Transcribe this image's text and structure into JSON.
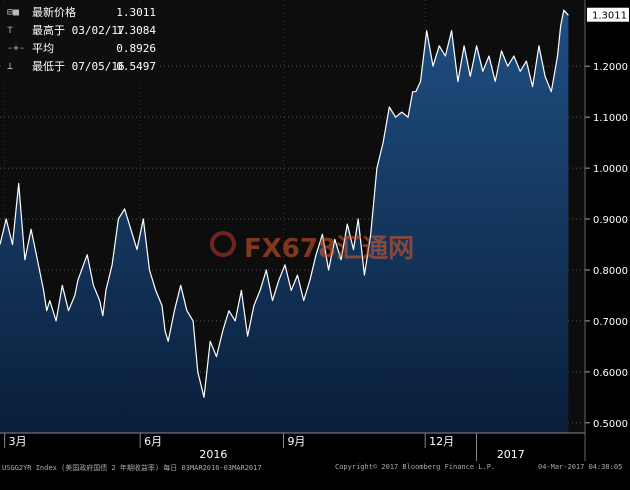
{
  "chart_data": {
    "type": "area",
    "title": "",
    "xlabel": "",
    "ylabel": "",
    "ylim": [
      0.48,
      1.33
    ],
    "y_ticks": [
      "0.5000",
      "0.6000",
      "0.7000",
      "0.8000",
      "0.9000",
      "1.0000",
      "1.1000",
      "1.2000"
    ],
    "x_month_labels": [
      {
        "label": "3月",
        "day": 3
      },
      {
        "label": "6月",
        "day": 90
      },
      {
        "label": "9月",
        "day": 182
      },
      {
        "label": "12月",
        "day": 273
      }
    ],
    "x_year_labels": [
      {
        "label": "2016",
        "day": 137
      },
      {
        "label": "2017",
        "day": 328
      }
    ],
    "x_range_days": [
      0,
      366
    ],
    "grid": "horizontal dotted",
    "colors": {
      "line": "#ffffff",
      "fill_top": "#1f4f82",
      "fill_bottom": "#0a1e3a",
      "plot_bg": "#0d0d0d",
      "label_box": "#ffffff"
    },
    "series": [
      {
        "name": "",
        "x": [
          0,
          4,
          8,
          12,
          16,
          20,
          24,
          28,
          30,
          32,
          36,
          40,
          44,
          48,
          50,
          56,
          60,
          64,
          66,
          68,
          72,
          76,
          80,
          84,
          88,
          92,
          96,
          100,
          104,
          106,
          108,
          112,
          116,
          120,
          124,
          127,
          131,
          135,
          139,
          143,
          147,
          151,
          155,
          159,
          163,
          167,
          171,
          175,
          179,
          183,
          187,
          191,
          195,
          199,
          203,
          207,
          211,
          215,
          219,
          223,
          227,
          230,
          234,
          238,
          242,
          246,
          250,
          254,
          258,
          262,
          265,
          267,
          270,
          274,
          278,
          282,
          286,
          290,
          294,
          298,
          302,
          306,
          310,
          314,
          318,
          322,
          326,
          330,
          334,
          338,
          342,
          346,
          350,
          354,
          358,
          360,
          362,
          365
        ],
        "y": [
          0.85,
          0.9,
          0.85,
          0.97,
          0.82,
          0.88,
          0.82,
          0.76,
          0.72,
          0.74,
          0.7,
          0.77,
          0.72,
          0.75,
          0.78,
          0.83,
          0.77,
          0.74,
          0.71,
          0.76,
          0.81,
          0.9,
          0.92,
          0.88,
          0.84,
          0.9,
          0.8,
          0.76,
          0.73,
          0.68,
          0.66,
          0.72,
          0.77,
          0.72,
          0.7,
          0.6,
          0.55,
          0.66,
          0.63,
          0.68,
          0.72,
          0.7,
          0.76,
          0.67,
          0.73,
          0.76,
          0.8,
          0.74,
          0.78,
          0.81,
          0.76,
          0.79,
          0.74,
          0.78,
          0.83,
          0.87,
          0.8,
          0.86,
          0.82,
          0.89,
          0.84,
          0.9,
          0.79,
          0.87,
          1.0,
          1.05,
          1.12,
          1.1,
          1.11,
          1.1,
          1.15,
          1.15,
          1.17,
          1.27,
          1.2,
          1.24,
          1.22,
          1.27,
          1.17,
          1.24,
          1.18,
          1.24,
          1.19,
          1.22,
          1.17,
          1.23,
          1.2,
          1.22,
          1.19,
          1.21,
          1.16,
          1.24,
          1.18,
          1.15,
          1.22,
          1.28,
          1.31,
          1.3
        ]
      }
    ],
    "current_value_label": "1.3011"
  },
  "legend": {
    "rows": [
      {
        "icon": "⊟■",
        "label": "最新价格",
        "value": "1.3011"
      },
      {
        "icon": "⊤",
        "label": "最高于 03/02/17",
        "value": "1.3084"
      },
      {
        "icon": "-+-",
        "label": "平均",
        "value": "0.8926"
      },
      {
        "icon": "⊥",
        "label": "最低于 07/05/16",
        "value": "0.5497"
      }
    ]
  },
  "footer": {
    "left": "USGG2YR Index (美国政府国债 2 年期收益率)  每日 03MAR2016-03MAR2017",
    "center": "Copyright© 2017 Bloomberg Finance L.P.",
    "right": "04-Mar-2017 04:38:05"
  },
  "watermark": {
    "text": "FX678汇通网"
  }
}
